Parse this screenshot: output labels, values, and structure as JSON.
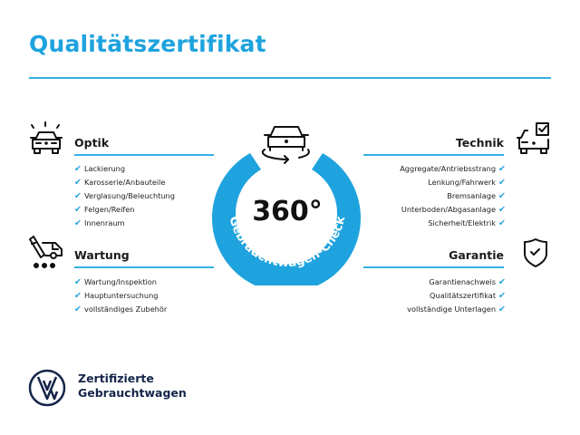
{
  "title": "Qualitätszertifikat",
  "colors": {
    "accent": "#1ea3de",
    "navy": "#15254a"
  },
  "badge": {
    "number": "360°",
    "ring_text": "Gebrauchtwagen-Check",
    "icon": "car-rotate-icon"
  },
  "sections": {
    "optik": {
      "title": "Optik",
      "icon": "car-lights-icon",
      "items": [
        "Lackierung",
        "Karosserie/Anbauteile",
        "Verglasung/Beleuchtung",
        "Felgen/Reifen",
        "Innenraum"
      ]
    },
    "wartung": {
      "title": "Wartung",
      "icon": "service-van-icon",
      "items": [
        "Wartung/Inspektion",
        "Hauptuntersuchung",
        "vollständiges Zubehör"
      ]
    },
    "technik": {
      "title": "Technik",
      "icon": "car-checkbox-icon",
      "items": [
        "Aggregate/Antriebsstrang",
        "Lenkung/Fahrwerk",
        "Bremsanlage",
        "Unterboden/Abgasanlage",
        "Sicherheit/Elektrik"
      ]
    },
    "garantie": {
      "title": "Garantie",
      "icon": "shield-check-icon",
      "items": [
        "Garantienachweis",
        "Qualitätszertifikat",
        "vollständige Unterlagen"
      ]
    }
  },
  "check_glyph": "✔",
  "logo": {
    "line1": "Zertifizierte",
    "line2": "Gebrauchtwagen",
    "icon": "vw-logo-icon"
  }
}
